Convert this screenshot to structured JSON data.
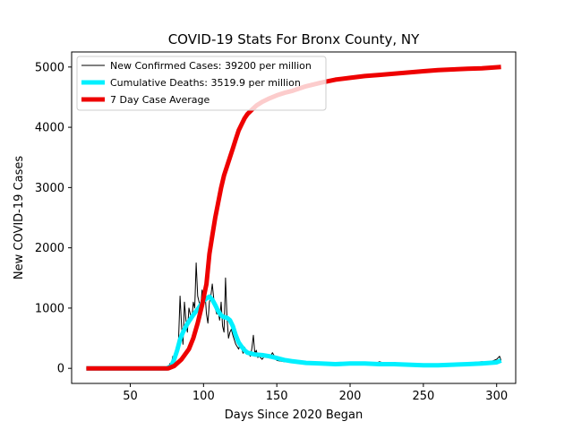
{
  "chart_data": {
    "type": "line",
    "title": "COVID-19 Stats For Bronx County, NY",
    "xlabel": "Days Since 2020 Began",
    "ylabel": "New COVID-19 Cases",
    "xlim": [
      10,
      313
    ],
    "ylim": [
      -250,
      5250
    ],
    "xticks": [
      50,
      100,
      150,
      200,
      250,
      300
    ],
    "yticks": [
      0,
      1000,
      2000,
      3000,
      4000,
      5000
    ],
    "grid": false,
    "legend_position": "top-left",
    "series": [
      {
        "name": "New Confirmed Cases: 39200 per million",
        "color": "#000000",
        "points": [
          [
            20,
            0
          ],
          [
            70,
            0
          ],
          [
            76,
            0
          ],
          [
            77,
            80
          ],
          [
            78,
            60
          ],
          [
            79,
            200
          ],
          [
            80,
            150
          ],
          [
            81,
            300
          ],
          [
            82,
            250
          ],
          [
            83,
            500
          ],
          [
            84,
            1200
          ],
          [
            85,
            700
          ],
          [
            86,
            400
          ],
          [
            87,
            1100
          ],
          [
            88,
            800
          ],
          [
            89,
            600
          ],
          [
            90,
            1000
          ],
          [
            91,
            900
          ],
          [
            92,
            800
          ],
          [
            93,
            1100
          ],
          [
            94,
            1000
          ],
          [
            95,
            1750
          ],
          [
            96,
            1200
          ],
          [
            97,
            1100
          ],
          [
            98,
            1000
          ],
          [
            99,
            1300
          ],
          [
            100,
            1100
          ],
          [
            101,
            1250
          ],
          [
            102,
            900
          ],
          [
            103,
            750
          ],
          [
            104,
            1100
          ],
          [
            105,
            1200
          ],
          [
            106,
            1400
          ],
          [
            107,
            1150
          ],
          [
            108,
            1000
          ],
          [
            109,
            900
          ],
          [
            110,
            950
          ],
          [
            111,
            800
          ],
          [
            112,
            1100
          ],
          [
            113,
            700
          ],
          [
            114,
            600
          ],
          [
            115,
            1500
          ],
          [
            116,
            850
          ],
          [
            117,
            500
          ],
          [
            118,
            600
          ],
          [
            119,
            650
          ],
          [
            120,
            550
          ],
          [
            122,
            400
          ],
          [
            124,
            320
          ],
          [
            125,
            420
          ],
          [
            127,
            250
          ],
          [
            128,
            350
          ],
          [
            130,
            260
          ],
          [
            132,
            200
          ],
          [
            133,
            330
          ],
          [
            134,
            550
          ],
          [
            135,
            250
          ],
          [
            136,
            300
          ],
          [
            137,
            180
          ],
          [
            138,
            200
          ],
          [
            140,
            150
          ],
          [
            142,
            220
          ],
          [
            145,
            170
          ],
          [
            147,
            260
          ],
          [
            150,
            130
          ],
          [
            155,
            110
          ],
          [
            160,
            110
          ],
          [
            170,
            80
          ],
          [
            180,
            80
          ],
          [
            190,
            80
          ],
          [
            200,
            90
          ],
          [
            210,
            90
          ],
          [
            215,
            60
          ],
          [
            220,
            110
          ],
          [
            225,
            80
          ],
          [
            230,
            100
          ],
          [
            235,
            70
          ],
          [
            240,
            60
          ],
          [
            250,
            60
          ],
          [
            260,
            50
          ],
          [
            270,
            80
          ],
          [
            280,
            90
          ],
          [
            290,
            110
          ],
          [
            295,
            100
          ],
          [
            300,
            150
          ],
          [
            302,
            200
          ],
          [
            303,
            130
          ]
        ]
      },
      {
        "name": "Cumulative Deaths: 3519.9 per million",
        "color": "#00f0ff",
        "points": [
          [
            20,
            0
          ],
          [
            75,
            0
          ],
          [
            78,
            40
          ],
          [
            80,
            150
          ],
          [
            82,
            300
          ],
          [
            84,
            480
          ],
          [
            86,
            600
          ],
          [
            88,
            700
          ],
          [
            90,
            780
          ],
          [
            92,
            850
          ],
          [
            94,
            920
          ],
          [
            96,
            980
          ],
          [
            98,
            1050
          ],
          [
            100,
            1120
          ],
          [
            102,
            1160
          ],
          [
            104,
            1190
          ],
          [
            106,
            1140
          ],
          [
            108,
            1050
          ],
          [
            110,
            950
          ],
          [
            112,
            880
          ],
          [
            114,
            850
          ],
          [
            116,
            840
          ],
          [
            118,
            800
          ],
          [
            120,
            700
          ],
          [
            122,
            550
          ],
          [
            124,
            430
          ],
          [
            126,
            360
          ],
          [
            128,
            300
          ],
          [
            130,
            260
          ],
          [
            135,
            230
          ],
          [
            140,
            220
          ],
          [
            145,
            200
          ],
          [
            150,
            170
          ],
          [
            155,
            140
          ],
          [
            160,
            120
          ],
          [
            170,
            90
          ],
          [
            180,
            80
          ],
          [
            190,
            70
          ],
          [
            200,
            80
          ],
          [
            210,
            80
          ],
          [
            220,
            70
          ],
          [
            230,
            70
          ],
          [
            240,
            60
          ],
          [
            250,
            50
          ],
          [
            260,
            50
          ],
          [
            270,
            60
          ],
          [
            280,
            70
          ],
          [
            290,
            80
          ],
          [
            300,
            100
          ],
          [
            303,
            130
          ]
        ]
      },
      {
        "name": "7 Day Case Average",
        "color": "#ee0000",
        "points": [
          [
            20,
            0
          ],
          [
            76,
            0
          ],
          [
            80,
            40
          ],
          [
            85,
            150
          ],
          [
            90,
            320
          ],
          [
            93,
            500
          ],
          [
            96,
            750
          ],
          [
            99,
            1050
          ],
          [
            102,
            1400
          ],
          [
            104,
            1900
          ],
          [
            106,
            2200
          ],
          [
            108,
            2500
          ],
          [
            110,
            2750
          ],
          [
            112,
            3000
          ],
          [
            114,
            3200
          ],
          [
            116,
            3350
          ],
          [
            118,
            3500
          ],
          [
            120,
            3650
          ],
          [
            122,
            3800
          ],
          [
            124,
            3950
          ],
          [
            126,
            4050
          ],
          [
            128,
            4150
          ],
          [
            130,
            4220
          ],
          [
            133,
            4290
          ],
          [
            136,
            4360
          ],
          [
            140,
            4420
          ],
          [
            145,
            4480
          ],
          [
            150,
            4530
          ],
          [
            155,
            4570
          ],
          [
            160,
            4600
          ],
          [
            165,
            4640
          ],
          [
            170,
            4680
          ],
          [
            175,
            4710
          ],
          [
            180,
            4740
          ],
          [
            190,
            4790
          ],
          [
            200,
            4820
          ],
          [
            210,
            4850
          ],
          [
            220,
            4870
          ],
          [
            230,
            4890
          ],
          [
            240,
            4910
          ],
          [
            250,
            4930
          ],
          [
            260,
            4950
          ],
          [
            270,
            4960
          ],
          [
            280,
            4970
          ],
          [
            290,
            4980
          ],
          [
            303,
            5000
          ]
        ]
      }
    ]
  }
}
